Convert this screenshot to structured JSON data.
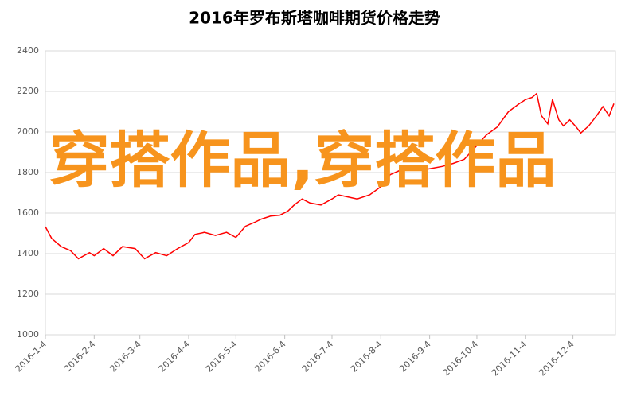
{
  "chart_data": {
    "type": "line",
    "title": "2016年罗布斯塔咖啡期货价格走势",
    "x": [
      "2016-1-4",
      "2016-1-8",
      "2016-1-14",
      "2016-1-20",
      "2016-1-25",
      "2016-2-1",
      "2016-2-4",
      "2016-2-10",
      "2016-2-16",
      "2016-2-22",
      "2016-3-1",
      "2016-3-7",
      "2016-3-14",
      "2016-3-21",
      "2016-3-28",
      "2016-4-4",
      "2016-4-8",
      "2016-4-14",
      "2016-4-21",
      "2016-4-28",
      "2016-5-4",
      "2016-5-10",
      "2016-5-16",
      "2016-5-20",
      "2016-5-26",
      "2016-6-1",
      "2016-6-6",
      "2016-6-10",
      "2016-6-15",
      "2016-6-20",
      "2016-6-27",
      "2016-7-4",
      "2016-7-8",
      "2016-7-14",
      "2016-7-20",
      "2016-7-28",
      "2016-8-4",
      "2016-8-10",
      "2016-8-16",
      "2016-8-22",
      "2016-8-29",
      "2016-9-5",
      "2016-9-12",
      "2016-9-19",
      "2016-9-26",
      "2016-10-3",
      "2016-10-10",
      "2016-10-17",
      "2016-10-24",
      "2016-10-31",
      "2016-11-4",
      "2016-11-8",
      "2016-11-11",
      "2016-11-14",
      "2016-11-18",
      "2016-11-21",
      "2016-11-25",
      "2016-11-28",
      "2016-12-2",
      "2016-12-6",
      "2016-12-9",
      "2016-12-14",
      "2016-12-19",
      "2016-12-23",
      "2016-12-27",
      "2016-12-30"
    ],
    "series": [
      {
        "color": "#ff0000",
        "values": [
          1533,
          1475,
          1435,
          1415,
          1375,
          1405,
          1390,
          1425,
          1390,
          1435,
          1425,
          1375,
          1405,
          1390,
          1425,
          1455,
          1495,
          1505,
          1490,
          1505,
          1480,
          1535,
          1555,
          1570,
          1585,
          1590,
          1610,
          1640,
          1670,
          1650,
          1640,
          1670,
          1690,
          1680,
          1670,
          1690,
          1730,
          1790,
          1810,
          1820,
          1810,
          1820,
          1830,
          1845,
          1865,
          1925,
          1985,
          2025,
          2100,
          2140,
          2160,
          2170,
          2190,
          2080,
          2040,
          2160,
          2060,
          2030,
          2060,
          2025,
          1995,
          2030,
          2080,
          2125,
          2080,
          2140
        ]
      }
    ],
    "xlim": [
      "2016-1-4",
      "2016-12-31"
    ],
    "xticks": [
      "2016-1-4",
      "2016-2-4",
      "2016-3-4",
      "2016-4-4",
      "2016-5-4",
      "2016-6-4",
      "2016-7-4",
      "2016-8-4",
      "2016-9-4",
      "2016-10-4",
      "2016-11-4",
      "2016-12-4"
    ],
    "ylim": [
      1000,
      2400
    ],
    "yticks": [
      1000,
      1200,
      1400,
      1600,
      1800,
      2000,
      2200,
      2400
    ],
    "grid": true,
    "watermark": "穿搭作品,穿搭作品"
  }
}
